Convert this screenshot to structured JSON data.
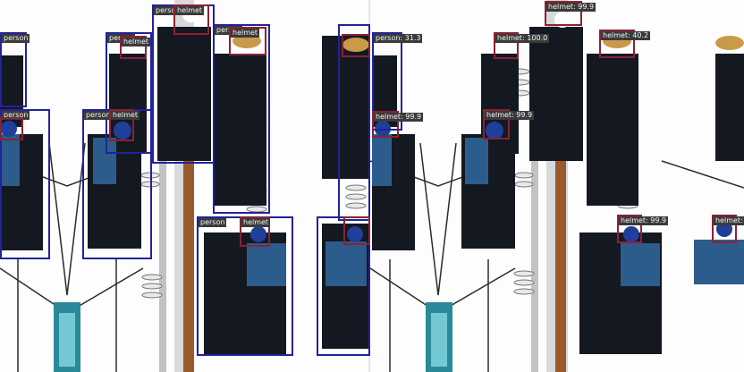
{
  "image": {
    "subject": "linemen climbing a utility pole",
    "colors": {
      "person_box": "#22229a",
      "helmet_box": "#8a2232",
      "label_bg": "#3a3a3a",
      "label_text": "#f4f4f4"
    }
  },
  "panels": [
    {
      "id": "left",
      "detections": [
        {
          "label": "person",
          "cls": "person"
        },
        {
          "label": "person",
          "cls": "person"
        },
        {
          "label": "person",
          "cls": "person"
        },
        {
          "label": "person",
          "cls": "person"
        },
        {
          "label": "person",
          "cls": "person"
        },
        {
          "label": "person",
          "cls": "person"
        },
        {
          "label": "person",
          "cls": "person"
        },
        {
          "label": "helmet",
          "cls": "helmet"
        },
        {
          "label": "helmet",
          "cls": "helmet"
        },
        {
          "label": "helmet",
          "cls": "helmet"
        },
        {
          "label": "helmet",
          "cls": "helmet"
        },
        {
          "label": "helmet",
          "cls": "helmet"
        },
        {
          "label": "helmet",
          "cls": "helmet"
        }
      ]
    },
    {
      "id": "right",
      "detections": [
        {
          "label": "person: 31.3",
          "cls": "person"
        },
        {
          "label": "helmet: 99.9",
          "cls": "helmet"
        },
        {
          "label": "helmet: 100.0",
          "cls": "helmet"
        },
        {
          "label": "helmet: 40.2",
          "cls": "helmet"
        },
        {
          "label": "helmet: 99.9",
          "cls": "helmet"
        },
        {
          "label": "helmet: 99.9",
          "cls": "helmet"
        },
        {
          "label": "helmet: 99.9",
          "cls": "helmet"
        },
        {
          "label": "helmet: 99.9",
          "cls": "helmet"
        }
      ]
    }
  ]
}
